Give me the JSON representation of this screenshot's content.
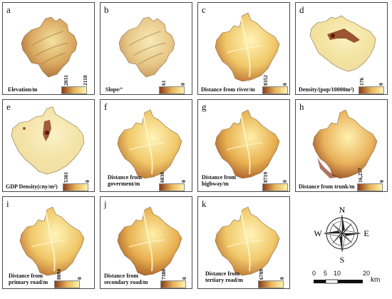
{
  "panels": [
    {
      "letter": "a",
      "label": "Elevation/m",
      "max": "2831",
      "min": "2118"
    },
    {
      "letter": "b",
      "label": "Slope/°",
      "max": "61",
      "min": "0"
    },
    {
      "letter": "c",
      "label": "Distance from river/m",
      "max": "8352",
      "min": "0"
    },
    {
      "letter": "d",
      "label": "Density/(pop/10000m²)",
      "max": "176",
      "min": "0"
    },
    {
      "letter": "e",
      "label": "GDP Density(cny/m²)",
      "max": "5301",
      "min": "0"
    },
    {
      "letter": "f",
      "label": "Distance from\ngoverment/m",
      "max": "6830",
      "min": "0"
    },
    {
      "letter": "g",
      "label": "Distance from\nhighway/m",
      "max": "8719",
      "min": "0"
    },
    {
      "letter": "h",
      "label": "Distance from trunk/m",
      "max": "16,257",
      "min": "0"
    },
    {
      "letter": "i",
      "label": "Distance from\nprimary road/m",
      "max": "8094",
      "min": "0"
    },
    {
      "letter": "j",
      "label": "Distance from\nsecondary road/m",
      "max": "7380",
      "min": "0"
    },
    {
      "letter": "k",
      "label": "Distance from\ntertiary road/m",
      "max": "6789",
      "min": "0"
    }
  ],
  "compass": {
    "n": "N",
    "s": "S",
    "e": "E",
    "w": "W"
  },
  "scale": {
    "ticks": [
      "0",
      "5",
      "10",
      "20"
    ],
    "unit": "km"
  },
  "colors": {
    "low": "#fff3b0",
    "mid": "#e6b45a",
    "high": "#8a3a1a"
  }
}
